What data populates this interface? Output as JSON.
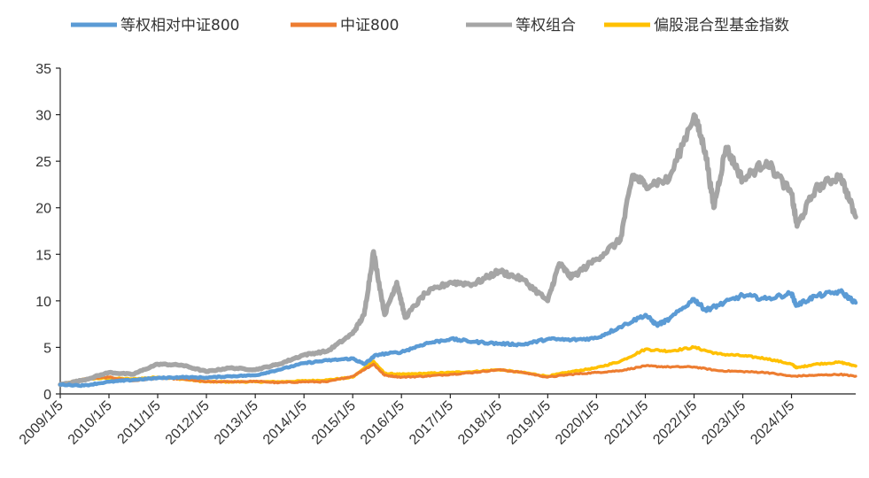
{
  "chart_data": {
    "type": "line",
    "title": "",
    "xlabel": "",
    "ylabel": "",
    "ylim": [
      0,
      35
    ],
    "yticks": [
      0,
      5,
      10,
      15,
      20,
      25,
      30,
      35
    ],
    "xlim": [
      "2009-01-05",
      "2025-04-30"
    ],
    "xticks": [
      "2009/1/5",
      "2010/1/5",
      "2011/1/5",
      "2012/1/5",
      "2013/1/5",
      "2014/1/5",
      "2015/1/5",
      "2016/1/5",
      "2017/1/5",
      "2018/1/5",
      "2019/1/5",
      "2020/1/5",
      "2021/1/5",
      "2022/1/5",
      "2023/1/5",
      "2024/1/5"
    ],
    "grid": false,
    "legend_position": "top",
    "series": [
      {
        "name": "等权相对中证800",
        "color": "#5b9bd5",
        "points": [
          [
            "2009-01-05",
            1.0
          ],
          [
            "2009-07-01",
            0.9
          ],
          [
            "2010-01-05",
            1.3
          ],
          [
            "2010-07-01",
            1.5
          ],
          [
            "2011-01-05",
            1.7
          ],
          [
            "2011-07-01",
            1.8
          ],
          [
            "2012-01-05",
            1.75
          ],
          [
            "2012-07-01",
            1.9
          ],
          [
            "2013-01-05",
            2.0
          ],
          [
            "2013-07-01",
            2.6
          ],
          [
            "2014-01-05",
            3.3
          ],
          [
            "2014-07-01",
            3.6
          ],
          [
            "2015-01-05",
            3.8
          ],
          [
            "2015-04-01",
            3.2
          ],
          [
            "2015-07-01",
            4.2
          ],
          [
            "2016-01-05",
            4.5
          ],
          [
            "2016-07-01",
            5.4
          ],
          [
            "2017-01-05",
            5.9
          ],
          [
            "2017-07-01",
            5.6
          ],
          [
            "2018-01-05",
            5.4
          ],
          [
            "2018-07-01",
            5.3
          ],
          [
            "2019-01-05",
            5.9
          ],
          [
            "2019-07-01",
            5.8
          ],
          [
            "2020-01-05",
            6.0
          ],
          [
            "2020-07-01",
            7.2
          ],
          [
            "2021-01-05",
            8.5
          ],
          [
            "2021-04-01",
            7.4
          ],
          [
            "2021-07-01",
            8.0
          ],
          [
            "2022-01-05",
            10.2
          ],
          [
            "2022-04-01",
            9.0
          ],
          [
            "2022-07-01",
            9.5
          ],
          [
            "2023-01-05",
            10.6
          ],
          [
            "2023-07-01",
            10.2
          ],
          [
            "2024-01-05",
            10.8
          ],
          [
            "2024-02-10",
            9.5
          ],
          [
            "2024-07-01",
            10.5
          ],
          [
            "2025-01-05",
            11.0
          ],
          [
            "2025-04-30",
            9.8
          ]
        ]
      },
      {
        "name": "中证800",
        "color": "#ed7d31",
        "points": [
          [
            "2009-01-05",
            1.0
          ],
          [
            "2009-07-01",
            1.6
          ],
          [
            "2010-01-05",
            1.8
          ],
          [
            "2010-07-01",
            1.4
          ],
          [
            "2011-01-05",
            1.7
          ],
          [
            "2011-07-01",
            1.6
          ],
          [
            "2012-01-05",
            1.3
          ],
          [
            "2012-07-01",
            1.3
          ],
          [
            "2013-01-05",
            1.35
          ],
          [
            "2013-07-01",
            1.2
          ],
          [
            "2014-01-05",
            1.3
          ],
          [
            "2014-07-01",
            1.3
          ],
          [
            "2015-01-05",
            1.9
          ],
          [
            "2015-06-10",
            3.2
          ],
          [
            "2015-09-01",
            2.0
          ],
          [
            "2016-01-05",
            1.8
          ],
          [
            "2016-07-01",
            1.9
          ],
          [
            "2017-01-05",
            2.1
          ],
          [
            "2017-07-01",
            2.3
          ],
          [
            "2018-01-05",
            2.6
          ],
          [
            "2018-07-01",
            2.3
          ],
          [
            "2019-01-05",
            1.8
          ],
          [
            "2019-07-01",
            2.1
          ],
          [
            "2020-01-05",
            2.3
          ],
          [
            "2020-07-01",
            2.5
          ],
          [
            "2021-01-05",
            3.0
          ],
          [
            "2021-07-01",
            2.9
          ],
          [
            "2022-01-05",
            2.9
          ],
          [
            "2022-07-01",
            2.5
          ],
          [
            "2023-01-05",
            2.4
          ],
          [
            "2023-07-01",
            2.3
          ],
          [
            "2024-01-05",
            1.9
          ],
          [
            "2024-07-01",
            2.0
          ],
          [
            "2025-01-05",
            2.1
          ],
          [
            "2025-04-30",
            1.9
          ]
        ]
      },
      {
        "name": "等权组合",
        "color": "#a5a5a5",
        "points": [
          [
            "2009-01-05",
            1.0
          ],
          [
            "2009-07-01",
            1.5
          ],
          [
            "2010-01-05",
            2.3
          ],
          [
            "2010-07-01",
            2.1
          ],
          [
            "2011-01-05",
            3.2
          ],
          [
            "2011-07-01",
            3.1
          ],
          [
            "2012-01-05",
            2.4
          ],
          [
            "2012-07-01",
            2.8
          ],
          [
            "2013-01-05",
            2.6
          ],
          [
            "2013-07-01",
            3.2
          ],
          [
            "2014-01-05",
            4.2
          ],
          [
            "2014-07-01",
            4.6
          ],
          [
            "2015-01-05",
            6.5
          ],
          [
            "2015-04-01",
            8.5
          ],
          [
            "2015-06-10",
            15.3
          ],
          [
            "2015-09-01",
            8.5
          ],
          [
            "2015-12-01",
            12.0
          ],
          [
            "2016-02-01",
            8.2
          ],
          [
            "2016-07-01",
            10.8
          ],
          [
            "2017-01-05",
            12.0
          ],
          [
            "2017-07-01",
            11.8
          ],
          [
            "2018-01-05",
            13.2
          ],
          [
            "2018-07-01",
            12.3
          ],
          [
            "2019-01-05",
            10.0
          ],
          [
            "2019-04-01",
            14.0
          ],
          [
            "2019-07-01",
            12.5
          ],
          [
            "2020-01-05",
            14.5
          ],
          [
            "2020-07-01",
            16.5
          ],
          [
            "2020-10-01",
            23.5
          ],
          [
            "2021-01-05",
            22.5
          ],
          [
            "2021-07-01",
            23.0
          ],
          [
            "2022-01-05",
            30.0
          ],
          [
            "2022-04-01",
            26.0
          ],
          [
            "2022-06-01",
            20.0
          ],
          [
            "2022-09-01",
            26.5
          ],
          [
            "2023-01-05",
            23.0
          ],
          [
            "2023-07-01",
            25.0
          ],
          [
            "2024-01-05",
            21.5
          ],
          [
            "2024-02-15",
            18.0
          ],
          [
            "2024-07-01",
            22.0
          ],
          [
            "2025-01-05",
            23.5
          ],
          [
            "2025-04-30",
            19.0
          ]
        ]
      },
      {
        "name": "偏股混合型基金指数",
        "color": "#ffc000",
        "points": [
          [
            "2009-01-05",
            1.0
          ],
          [
            "2009-07-01",
            1.6
          ],
          [
            "2010-01-05",
            1.7
          ],
          [
            "2010-07-01",
            1.6
          ],
          [
            "2011-01-05",
            1.8
          ],
          [
            "2011-07-01",
            1.6
          ],
          [
            "2012-01-05",
            1.3
          ],
          [
            "2012-07-01",
            1.3
          ],
          [
            "2013-01-05",
            1.3
          ],
          [
            "2013-07-01",
            1.3
          ],
          [
            "2014-01-05",
            1.4
          ],
          [
            "2014-07-01",
            1.5
          ],
          [
            "2015-01-05",
            1.8
          ],
          [
            "2015-06-10",
            3.5
          ],
          [
            "2015-09-01",
            2.2
          ],
          [
            "2016-01-05",
            2.1
          ],
          [
            "2016-07-01",
            2.2
          ],
          [
            "2017-01-05",
            2.3
          ],
          [
            "2017-07-01",
            2.4
          ],
          [
            "2018-01-05",
            2.6
          ],
          [
            "2018-07-01",
            2.3
          ],
          [
            "2019-01-05",
            1.9
          ],
          [
            "2019-07-01",
            2.4
          ],
          [
            "2020-01-05",
            2.8
          ],
          [
            "2020-07-01",
            3.5
          ],
          [
            "2021-01-05",
            4.8
          ],
          [
            "2021-07-01",
            4.6
          ],
          [
            "2022-01-05",
            5.0
          ],
          [
            "2022-07-01",
            4.3
          ],
          [
            "2023-01-05",
            4.1
          ],
          [
            "2023-07-01",
            3.8
          ],
          [
            "2024-01-05",
            3.2
          ],
          [
            "2024-02-15",
            2.8
          ],
          [
            "2024-07-01",
            3.2
          ],
          [
            "2025-01-05",
            3.4
          ],
          [
            "2025-04-30",
            3.0
          ]
        ]
      }
    ]
  }
}
